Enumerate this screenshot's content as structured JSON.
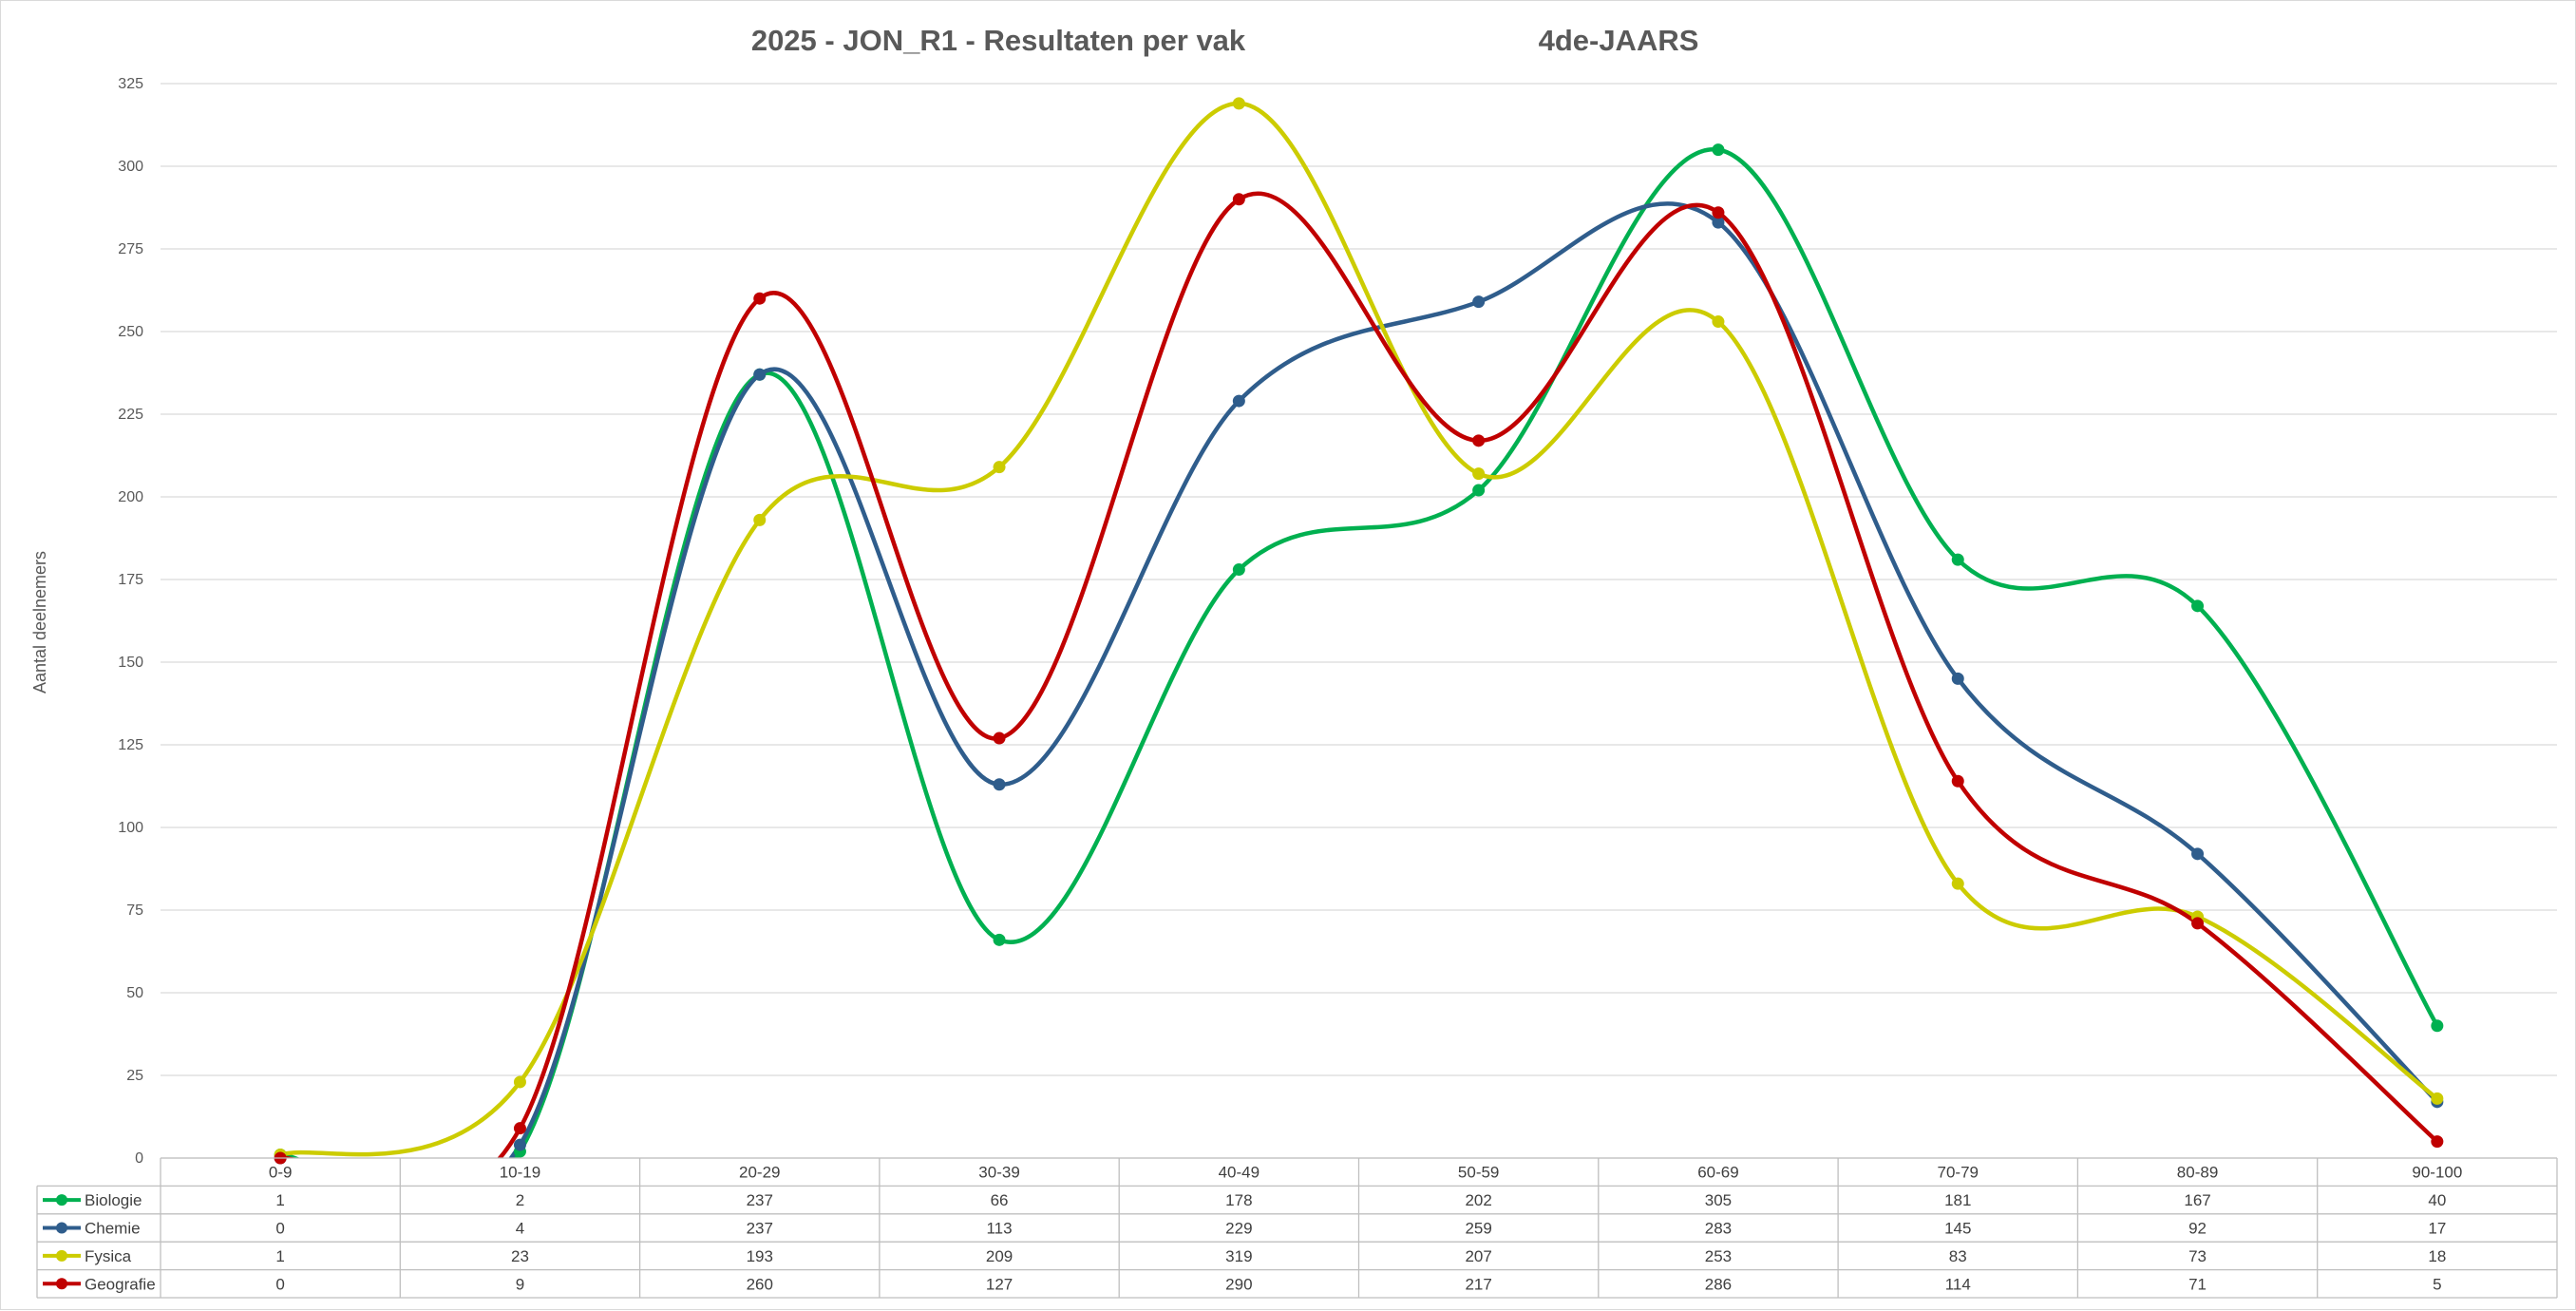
{
  "chart_data": {
    "type": "line",
    "title": "2025 - JON_R1 - Resultaten per vak",
    "subtitle": "4de-JAARS",
    "xlabel": "",
    "ylabel": "Aantal deelnemers",
    "categories": [
      "0-9",
      "10-19",
      "20-29",
      "30-39",
      "40-49",
      "50-59",
      "60-69",
      "70-79",
      "80-89",
      "90-100"
    ],
    "ylim": [
      0,
      325
    ],
    "yticks": [
      0,
      25,
      50,
      75,
      100,
      125,
      150,
      175,
      200,
      225,
      250,
      275,
      300,
      325
    ],
    "smooth": true,
    "grid": true,
    "legend": "data-table",
    "series": [
      {
        "name": "Biologie",
        "color": "#00b050",
        "values": [
          1,
          2,
          237,
          66,
          178,
          202,
          305,
          181,
          167,
          40
        ]
      },
      {
        "name": "Chemie",
        "color": "#2f5d8c",
        "values": [
          0,
          4,
          237,
          113,
          229,
          259,
          283,
          145,
          92,
          17
        ]
      },
      {
        "name": "Fysica",
        "color": "#cccc00",
        "values": [
          1,
          23,
          193,
          209,
          319,
          207,
          253,
          83,
          73,
          18
        ]
      },
      {
        "name": "Geografie",
        "color": "#c00000",
        "values": [
          0,
          9,
          260,
          127,
          290,
          217,
          286,
          114,
          71,
          5
        ]
      }
    ]
  }
}
